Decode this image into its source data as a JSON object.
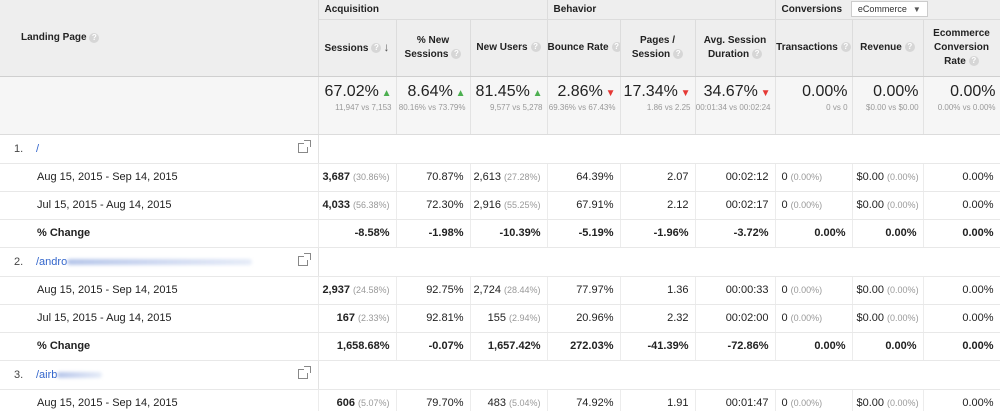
{
  "header": {
    "landing_page": "Landing Page",
    "groups": {
      "acquisition": "Acquisition",
      "behavior": "Behavior",
      "conversions": "Conversions",
      "conversions_select": "eCommerce"
    },
    "columns": [
      {
        "l1": "Sessions",
        "l2": ""
      },
      {
        "l1": "% New",
        "l2": "Sessions"
      },
      {
        "l1": "New Users",
        "l2": ""
      },
      {
        "l1": "Bounce Rate",
        "l2": ""
      },
      {
        "l1": "Pages /",
        "l2": "Session"
      },
      {
        "l1": "Avg. Session",
        "l2": "Duration"
      },
      {
        "l1": "Transactions",
        "l2": ""
      },
      {
        "l1": "Revenue",
        "l2": ""
      },
      {
        "l1": "Ecommerce",
        "l2": "Conversion",
        "l3": "Rate"
      }
    ]
  },
  "summary": [
    {
      "value": "67.02%",
      "trend": "up",
      "sub": "11,947 vs 7,153"
    },
    {
      "value": "8.64%",
      "trend": "up",
      "sub": "80.16% vs 73.79%"
    },
    {
      "value": "81.45%",
      "trend": "up",
      "sub": "9,577 vs 5,278"
    },
    {
      "value": "2.86%",
      "trend": "down",
      "sub": "69.36% vs 67.43%"
    },
    {
      "value": "17.34%",
      "trend": "down",
      "sub": "1.86 vs 2.25"
    },
    {
      "value": "34.67%",
      "trend": "down",
      "sub": "00:01:34 vs 00:02:24"
    },
    {
      "value": "0.00%",
      "trend": "",
      "sub": "0 vs 0"
    },
    {
      "value": "0.00%",
      "trend": "",
      "sub": "$0.00 vs $0.00"
    },
    {
      "value": "0.00%",
      "trend": "",
      "sub": "0.00% vs 0.00%"
    }
  ],
  "pages": [
    {
      "num": "1.",
      "path": "/",
      "rows": [
        {
          "label": "Aug 15, 2015 - Sep 14, 2015",
          "sessions": "3,687",
          "sessions_pct": "(30.86%)",
          "new_sess": "70.87%",
          "new_users": "2,613",
          "new_users_pct": "(27.28%)",
          "bounce": "64.39%",
          "pages": "2.07",
          "duration": "00:02:12",
          "trans": "0",
          "trans_pct": "(0.00%)",
          "revenue": "$0.00",
          "revenue_pct": "(0.00%)",
          "conv": "0.00%"
        },
        {
          "label": "Jul 15, 2015 - Aug 14, 2015",
          "sessions": "4,033",
          "sessions_pct": "(56.38%)",
          "new_sess": "72.30%",
          "new_users": "2,916",
          "new_users_pct": "(55.25%)",
          "bounce": "67.91%",
          "pages": "2.12",
          "duration": "00:02:17",
          "trans": "0",
          "trans_pct": "(0.00%)",
          "revenue": "$0.00",
          "revenue_pct": "(0.00%)",
          "conv": "0.00%"
        }
      ],
      "change": {
        "label": "% Change",
        "sessions": "-8.58%",
        "new_sess": "-1.98%",
        "new_users": "-10.39%",
        "bounce": "-5.19%",
        "pages": "-1.96%",
        "duration": "-3.72%",
        "trans": "0.00%",
        "revenue": "0.00%",
        "conv": "0.00%"
      }
    },
    {
      "num": "2.",
      "path": "/andro",
      "rows": [
        {
          "label": "Aug 15, 2015 - Sep 14, 2015",
          "sessions": "2,937",
          "sessions_pct": "(24.58%)",
          "new_sess": "92.75%",
          "new_users": "2,724",
          "new_users_pct": "(28.44%)",
          "bounce": "77.97%",
          "pages": "1.36",
          "duration": "00:00:33",
          "trans": "0",
          "trans_pct": "(0.00%)",
          "revenue": "$0.00",
          "revenue_pct": "(0.00%)",
          "conv": "0.00%"
        },
        {
          "label": "Jul 15, 2015 - Aug 14, 2015",
          "sessions": "167",
          "sessions_pct": "(2.33%)",
          "new_sess": "92.81%",
          "new_users": "155",
          "new_users_pct": "(2.94%)",
          "bounce": "20.96%",
          "pages": "2.32",
          "duration": "00:02:00",
          "trans": "0",
          "trans_pct": "(0.00%)",
          "revenue": "$0.00",
          "revenue_pct": "(0.00%)",
          "conv": "0.00%"
        }
      ],
      "change": {
        "label": "% Change",
        "sessions": "1,658.68%",
        "new_sess": "-0.07%",
        "new_users": "1,657.42%",
        "bounce": "272.03%",
        "pages": "-41.39%",
        "duration": "-72.86%",
        "trans": "0.00%",
        "revenue": "0.00%",
        "conv": "0.00%"
      }
    },
    {
      "num": "3.",
      "path": "/airb",
      "rows": [
        {
          "label": "Aug 15, 2015 - Sep 14, 2015",
          "sessions": "606",
          "sessions_pct": "(5.07%)",
          "new_sess": "79.70%",
          "new_users": "483",
          "new_users_pct": "(5.04%)",
          "bounce": "74.92%",
          "pages": "1.91",
          "duration": "00:01:47",
          "trans": "0",
          "trans_pct": "(0.00%)",
          "revenue": "$0.00",
          "revenue_pct": "(0.00%)",
          "conv": "0.00%"
        }
      ]
    }
  ]
}
